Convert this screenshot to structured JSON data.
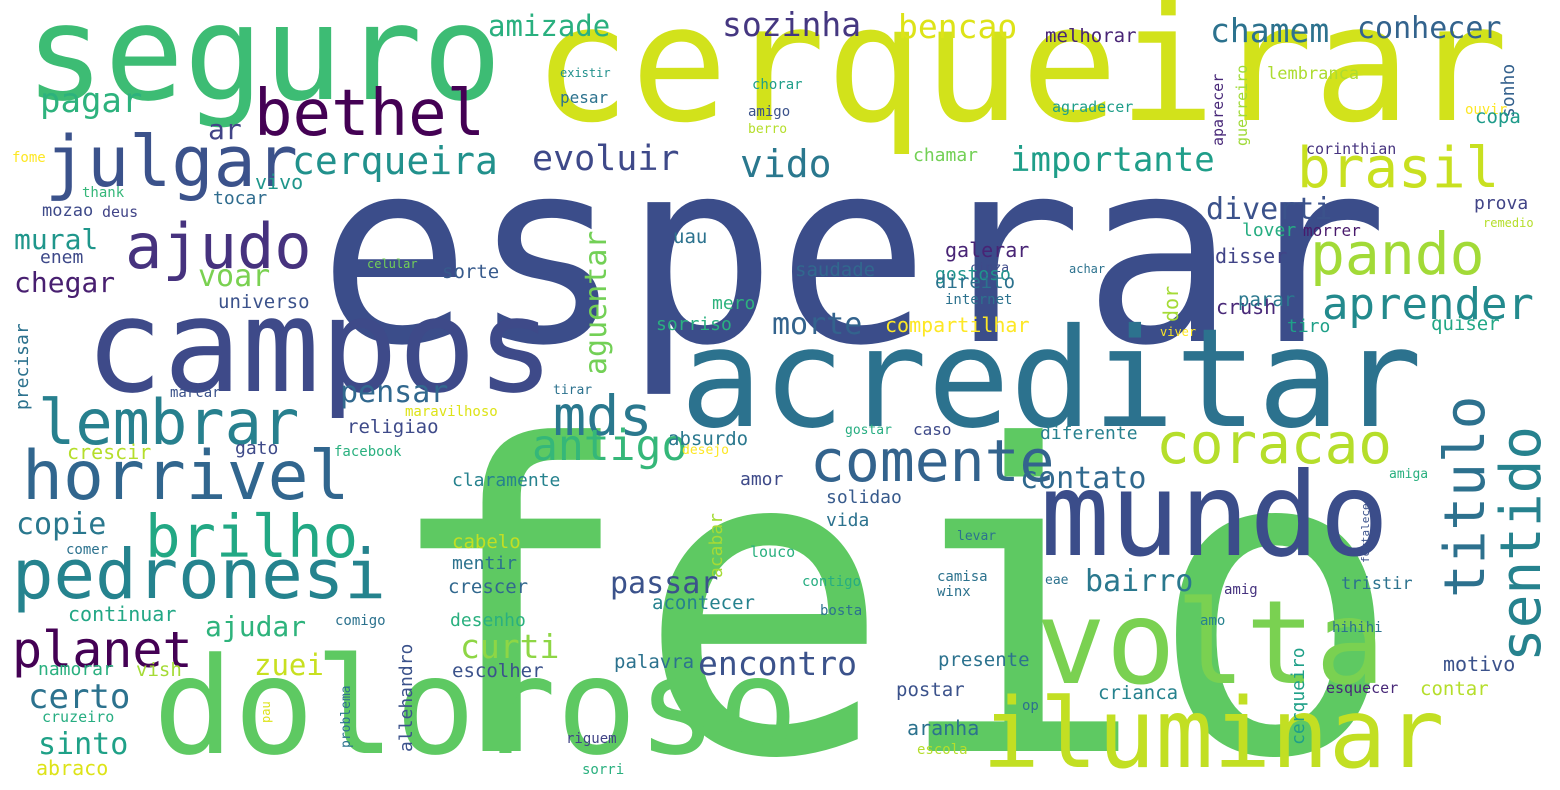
{
  "words": [
    {
      "text": "feio",
      "color": "#5ec962"
    },
    {
      "text": "esperar",
      "color": "#3b4d8a"
    },
    {
      "text": "cerqueirar",
      "color": "#d2e21b"
    },
    {
      "text": "seguro",
      "color": "#3dbc74"
    },
    {
      "text": "campos",
      "color": "#3e4a89"
    },
    {
      "text": "acreditar",
      "color": "#2c728e"
    },
    {
      "text": "doloroso",
      "color": "#5ec962"
    },
    {
      "text": "mundo",
      "color": "#3b4d8a"
    },
    {
      "text": "volta",
      "color": "#7ad151"
    },
    {
      "text": "iluminar",
      "color": "#c2df23"
    },
    {
      "text": "pedronesi",
      "color": "#25838e"
    },
    {
      "text": "horrivel",
      "color": "#31668e"
    },
    {
      "text": "bethel",
      "color": "#440154"
    },
    {
      "text": "julgar",
      "color": "#3b528b"
    },
    {
      "text": "ajudo",
      "color": "#46327e"
    },
    {
      "text": "lembrar",
      "color": "#27808e"
    },
    {
      "text": "brilho",
      "color": "#22a884"
    },
    {
      "text": "comente",
      "color": "#33638d"
    },
    {
      "text": "coracao",
      "color": "#b5de2b"
    },
    {
      "text": "brasil",
      "color": "#c8e020"
    },
    {
      "text": "pando",
      "color": "#a2da37"
    },
    {
      "text": "aprender",
      "color": "#238a8d"
    },
    {
      "text": "sentido",
      "color": "#26828e"
    },
    {
      "text": "titulo",
      "color": "#2d718e"
    },
    {
      "text": "mds",
      "color": "#2a788e"
    },
    {
      "text": "planet",
      "color": "#440154"
    },
    {
      "text": "antigo",
      "color": "#35b779"
    },
    {
      "text": "cerqueira",
      "color": "#21918c"
    },
    {
      "text": "evoluir",
      "color": "#3e4989"
    },
    {
      "text": "vido",
      "color": "#2a788e"
    },
    {
      "text": "importante",
      "color": "#1f9e89"
    },
    {
      "text": "sozinha",
      "color": "#453781"
    },
    {
      "text": "bencao",
      "color": "#dde318"
    },
    {
      "text": "chamem",
      "color": "#2c728e"
    },
    {
      "text": "conhecer",
      "color": "#33638d"
    },
    {
      "text": "amizade",
      "color": "#2ab07f"
    },
    {
      "text": "pagar",
      "color": "#2db27d"
    },
    {
      "text": "ar",
      "color": "#414487"
    },
    {
      "text": "encontro",
      "color": "#3b528b"
    },
    {
      "text": "passar",
      "color": "#3b528b"
    },
    {
      "text": "contato",
      "color": "#30698e"
    },
    {
      "text": "curti",
      "color": "#8ed645"
    },
    {
      "text": "zuei",
      "color": "#c8e020"
    },
    {
      "text": "ajudar",
      "color": "#2eb37c"
    },
    {
      "text": "certo",
      "color": "#2c728e"
    },
    {
      "text": "sinto",
      "color": "#1fa187"
    },
    {
      "text": "copie",
      "color": "#2a788e"
    },
    {
      "text": "mural",
      "color": "#1f968b"
    },
    {
      "text": "chegar",
      "color": "#481f70"
    },
    {
      "text": "voar",
      "color": "#7ad151"
    },
    {
      "text": "morte",
      "color": "#33638d"
    },
    {
      "text": "pensar",
      "color": "#31688e"
    },
    {
      "text": "diverti",
      "color": "#3b528b"
    },
    {
      "text": "bairro",
      "color": "#2a788e"
    },
    {
      "text": "aguentar",
      "color": "#73d056"
    },
    {
      "text": "melhorar",
      "color": "#482475"
    },
    {
      "text": "existir",
      "color": "#21918c"
    },
    {
      "text": "chorar",
      "color": "#1f9e89"
    },
    {
      "text": "pesar",
      "color": "#2c728e"
    },
    {
      "text": "amigo",
      "color": "#3b528b"
    },
    {
      "text": "berro",
      "color": "#b5de2b"
    },
    {
      "text": "agradecer",
      "color": "#1f9e89"
    },
    {
      "text": "aparecer",
      "color": "#482878"
    },
    {
      "text": "guerreiro",
      "color": "#a0da39"
    },
    {
      "text": "lembranca",
      "color": "#addc30"
    },
    {
      "text": "ouvir",
      "color": "#fde725"
    },
    {
      "text": "sonho",
      "color": "#34618d"
    },
    {
      "text": "copa",
      "color": "#1e9b8a"
    },
    {
      "text": "corinthian",
      "color": "#46337f"
    },
    {
      "text": "fome",
      "color": "#fde725"
    },
    {
      "text": "thank",
      "color": "#35b779"
    },
    {
      "text": "mozao",
      "color": "#3e4a89"
    },
    {
      "text": "deus",
      "color": "#414487"
    },
    {
      "text": "vivo",
      "color": "#1f968b"
    },
    {
      "text": "tocar",
      "color": "#2f6c8e"
    },
    {
      "text": "chamar",
      "color": "#73d056"
    },
    {
      "text": "uau",
      "color": "#2c728e"
    },
    {
      "text": "galerar",
      "color": "#482475"
    },
    {
      "text": "cinza",
      "color": "#3e4a89"
    },
    {
      "text": "prova",
      "color": "#414487"
    },
    {
      "text": "remedio",
      "color": "#b5de2b"
    },
    {
      "text": "lover",
      "color": "#26ad81"
    },
    {
      "text": "morrer",
      "color": "#481a6c"
    },
    {
      "text": "enem",
      "color": "#3e4989"
    },
    {
      "text": "celular",
      "color": "#73d056"
    },
    {
      "text": "sorte",
      "color": "#375a8c"
    },
    {
      "text": "saudade",
      "color": "#31688e"
    },
    {
      "text": "gostoso",
      "color": "#1f948c"
    },
    {
      "text": "achar",
      "color": "#2c728e"
    },
    {
      "text": "disser",
      "color": "#414487"
    },
    {
      "text": "universo",
      "color": "#3b528b"
    },
    {
      "text": "direito",
      "color": "#2c728e"
    },
    {
      "text": "internet",
      "color": "#2c728e"
    },
    {
      "text": "crush",
      "color": "#482878"
    },
    {
      "text": "viver",
      "color": "#fde725"
    },
    {
      "text": "mero",
      "color": "#2db27d"
    },
    {
      "text": "dor",
      "color": "#a5db36"
    },
    {
      "text": "parar",
      "color": "#2a788e"
    },
    {
      "text": "precisar",
      "color": "#2c728e"
    },
    {
      "text": "tiro",
      "color": "#1fa088"
    },
    {
      "text": "quiser",
      "color": "#22a785"
    },
    {
      "text": "sorriso",
      "color": "#2ab07f"
    },
    {
      "text": "compartilhar",
      "color": "#fde725"
    },
    {
      "text": "marcar",
      "color": "#3b528b"
    },
    {
      "text": "tirar",
      "color": "#2c728e"
    },
    {
      "text": "maravilhoso",
      "color": "#dde318"
    },
    {
      "text": "religiao",
      "color": "#3e4a89"
    },
    {
      "text": "gostar",
      "color": "#26ad81"
    },
    {
      "text": "caso",
      "color": "#3e4a89"
    },
    {
      "text": "diferente",
      "color": "#27808e"
    },
    {
      "text": "absurdo",
      "color": "#2a788e"
    },
    {
      "text": "crescir",
      "color": "#b5de2b"
    },
    {
      "text": "gato",
      "color": "#3e4a89"
    },
    {
      "text": "facebook",
      "color": "#2ab07f"
    },
    {
      "text": "desejo",
      "color": "#fde725"
    },
    {
      "text": "amiga",
      "color": "#2ab07f"
    },
    {
      "text": "claramente",
      "color": "#26828e"
    },
    {
      "text": "amor",
      "color": "#3e4a89"
    },
    {
      "text": "solidao",
      "color": "#375a8c"
    },
    {
      "text": "vida",
      "color": "#2c728e"
    },
    {
      "text": "levar",
      "color": "#2c728e"
    },
    {
      "text": "fortalecer",
      "color": "#3b528b"
    },
    {
      "text": "comer",
      "color": "#2c728e"
    },
    {
      "text": "cabelo",
      "color": "#c2df23"
    },
    {
      "text": "acabar",
      "color": "#a5db36"
    },
    {
      "text": "louco",
      "color": "#2ab07f"
    },
    {
      "text": "mentir",
      "color": "#2c728e"
    },
    {
      "text": "contigo",
      "color": "#26ad81"
    },
    {
      "text": "camisa",
      "color": "#2c728e"
    },
    {
      "text": "crescer",
      "color": "#31688e"
    },
    {
      "text": "winx",
      "color": "#2c728e"
    },
    {
      "text": "eae",
      "color": "#2c728e"
    },
    {
      "text": "amig",
      "color": "#46337f"
    },
    {
      "text": "tristir",
      "color": "#2c728e"
    },
    {
      "text": "acontecer",
      "color": "#26828e"
    },
    {
      "text": "continuar",
      "color": "#22a785"
    },
    {
      "text": "comigo",
      "color": "#2c728e"
    },
    {
      "text": "desenho",
      "color": "#2ab07f"
    },
    {
      "text": "bosta",
      "color": "#2c728e"
    },
    {
      "text": "amo",
      "color": "#26828e"
    },
    {
      "text": "hihihi",
      "color": "#2c728e"
    },
    {
      "text": "cerqueiro",
      "color": "#1fa088"
    },
    {
      "text": "allehandro",
      "color": "#3b528b"
    },
    {
      "text": "namorar",
      "color": "#2ab07f"
    },
    {
      "text": "vish",
      "color": "#a5db36"
    },
    {
      "text": "escolher",
      "color": "#3b528b"
    },
    {
      "text": "palavra",
      "color": "#2c728e"
    },
    {
      "text": "presente",
      "color": "#2c728e"
    },
    {
      "text": "motivo",
      "color": "#3b528b"
    },
    {
      "text": "postar",
      "color": "#3b528b"
    },
    {
      "text": "contar",
      "color": "#b5de2b"
    },
    {
      "text": "crianca",
      "color": "#26828e"
    },
    {
      "text": "esquecer",
      "color": "#482878"
    },
    {
      "text": "problema",
      "color": "#2c728e"
    },
    {
      "text": "pau",
      "color": "#dde318"
    },
    {
      "text": "op",
      "color": "#2c728e"
    },
    {
      "text": "cruzeiro",
      "color": "#26ad81"
    },
    {
      "text": "aranha",
      "color": "#2c728e"
    },
    {
      "text": "riguem",
      "color": "#414487"
    },
    {
      "text": "escola",
      "color": "#b5de2b"
    },
    {
      "text": "abraco",
      "color": "#dde318"
    },
    {
      "text": "sorri",
      "color": "#2ab07f"
    }
  ]
}
